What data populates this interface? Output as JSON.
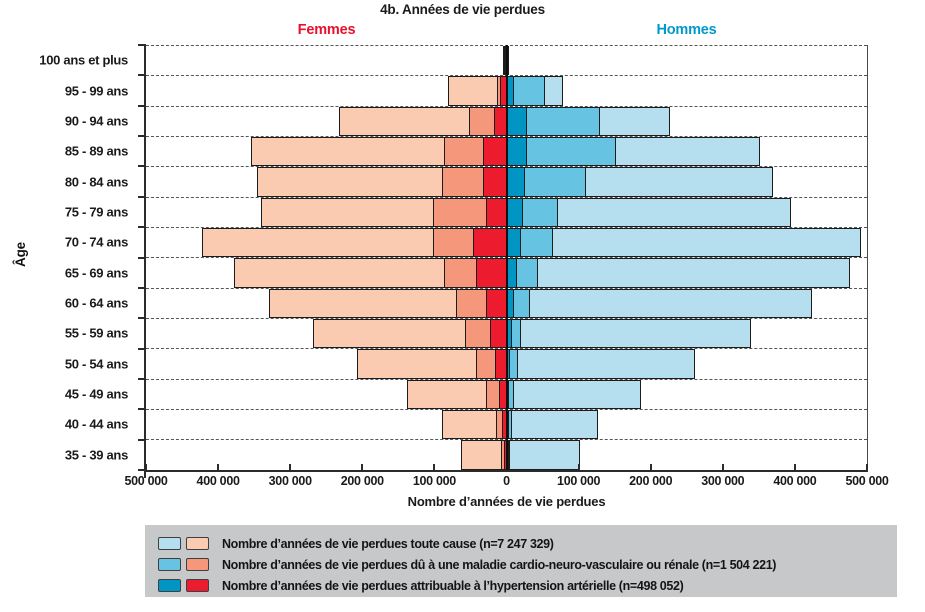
{
  "title": "4b. Années de vie perdues",
  "gender_labels": {
    "femmes": "Femmes",
    "hommes": "Hommes"
  },
  "y_axis_label": "Âge",
  "x_axis_label": "Nombre d’années de vie perdues",
  "colors": {
    "femmes_label": "#E8112D",
    "hommes_label": "#0099CE",
    "femmes_total": "#FACBB1",
    "femmes_cardio": "#F5977B",
    "femmes_hta": "#EC1B2E",
    "hommes_total": "#B5DFEE",
    "hommes_cardio": "#66C3E2",
    "hommes_hta": "#0095C3",
    "legend_background": "#C7C8CA",
    "grid": "#555555"
  },
  "chart_data": {
    "type": "bar",
    "subtype": "population-pyramid",
    "orientation": "horizontal",
    "axis_max_per_side": 500000,
    "grid": "dashed-horizontal",
    "x_tick_labels": [
      "500 000",
      "400 000",
      "300 000",
      "200 000",
      "100 000",
      "0",
      "100 000",
      "200 000",
      "300 000",
      "400 000",
      "500 000"
    ],
    "ages": [
      "100 ans et plus",
      "95 - 99 ans",
      "90 - 94 ans",
      "85 - 89 ans",
      "80 - 84 ans",
      "75 - 79 ans",
      "70 - 74 ans",
      "65 - 69 ans",
      "60 - 64 ans",
      "55 - 59 ans",
      "50 - 54 ans",
      "45 - 49 ans",
      "40 - 44 ans",
      "35 - 39 ans"
    ],
    "series": [
      {
        "name": "Femmes – toute cause",
        "side": "femmes",
        "key": "total",
        "color": "#FACBB1",
        "values": [
          5000,
          81000,
          233000,
          355000,
          346000,
          341000,
          423000,
          378000,
          330000,
          269000,
          208000,
          138000,
          90000,
          63000
        ]
      },
      {
        "name": "Femmes – maladie cardio-neuro-vasculaire ou rénale",
        "side": "femmes",
        "key": "cardio",
        "color": "#F5977B",
        "values": [
          3000,
          13000,
          52000,
          87000,
          90000,
          102000,
          102000,
          87000,
          70000,
          58000,
          42000,
          29000,
          15000,
          8000
        ]
      },
      {
        "name": "Femmes – attribuable à l’hypertension artérielle",
        "side": "femmes",
        "key": "hta",
        "color": "#EC1B2E",
        "values": [
          2500,
          9000,
          17000,
          32000,
          33000,
          29000,
          46000,
          42000,
          29000,
          23000,
          16000,
          11000,
          6500,
          4000
        ]
      },
      {
        "name": "Hommes – toute cause",
        "side": "hommes",
        "key": "total",
        "color": "#B5DFEE",
        "values": [
          4000,
          79000,
          227000,
          351000,
          370000,
          395000,
          492000,
          476000,
          424000,
          339000,
          261000,
          186000,
          127000,
          102000
        ]
      },
      {
        "name": "Hommes – maladie cardio-neuro-vasculaire ou rénale",
        "side": "hommes",
        "key": "cardio",
        "color": "#66C3E2",
        "values": [
          2500,
          54000,
          129000,
          152000,
          110000,
          72000,
          65000,
          43000,
          33000,
          20000,
          16000,
          11000,
          7000,
          5500
        ]
      },
      {
        "name": "Hommes – attribuable à l’hypertension artérielle",
        "side": "hommes",
        "key": "hta",
        "color": "#0095C3",
        "values": [
          1500,
          11000,
          28000,
          29000,
          26000,
          23000,
          20000,
          14000,
          11000,
          7000,
          5500,
          4000,
          2500,
          1800
        ]
      }
    ]
  },
  "legend": {
    "items": [
      {
        "label": "Nombre d’années de vie perdues toute cause (n=7 247 329)",
        "blue": "#B5DFEE",
        "pink": "#FACBB1"
      },
      {
        "label": "Nombre d’années de vie perdues dû à une maladie cardio-neuro-vasculaire ou rénale (n=1 504 221)",
        "blue": "#66C3E2",
        "pink": "#F5977B"
      },
      {
        "label": "Nombre d’années de vie perdues attribuable à l’hypertension artérielle (n=498 052)",
        "blue": "#0095C3",
        "pink": "#EC1B2E"
      }
    ]
  }
}
